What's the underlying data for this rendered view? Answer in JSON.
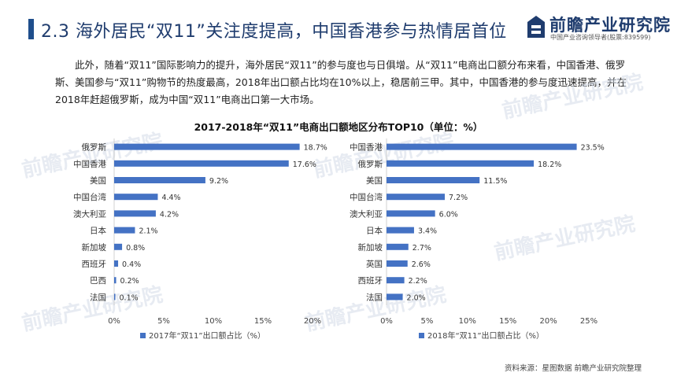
{
  "header": {
    "title": "2.3 海外居民“双11”关注度提高，中国香港参与热情居首位"
  },
  "logo": {
    "name": "前瞻产业研究院",
    "tagline": "中国产业咨询领导者(股票:839599)",
    "watermark_text": "前瞻产业研究院"
  },
  "body_text": "此外，随着“双11”国际影响力的提升，海外居民“双11”的参与度也与日俱增。从“双11”电商出口额分布来看，中国香港、俄罗斯、美国参与“双11”购物节的热度最高，2018年出口额占比均在10%以上，稳居前三甲。其中，中国香港的参与度迅速提高，并在2018年赶超俄罗斯，成为中国“双11”电商出口第一大市场。",
  "chart_title": "2017-2018年“双11”电商出口额地区分布TOP10（单位：%）",
  "source": "资料来源：星图数据 前瞻产业研究院整理",
  "colors": {
    "bar": "#4472c4",
    "title": "#1f3c6e",
    "accent": "#1f4e8c"
  },
  "chart_data": [
    {
      "type": "bar",
      "orientation": "horizontal",
      "categories": [
        "俄罗斯",
        "中国香港",
        "美国",
        "中国台湾",
        "澳大利亚",
        "日本",
        "新加坡",
        "西班牙",
        "巴西",
        "法国"
      ],
      "series": [
        {
          "name": "2017年“双11”出口额占比（%）",
          "values": [
            18.7,
            17.6,
            9.2,
            4.4,
            4.2,
            2.1,
            0.8,
            0.4,
            0.2,
            0.1
          ]
        }
      ],
      "x_ticks": [
        "0%",
        "5%",
        "10%",
        "15%",
        "20%"
      ],
      "xlim": [
        0,
        20
      ],
      "value_suffix": "%",
      "legend_position": "bottom-left"
    },
    {
      "type": "bar",
      "orientation": "horizontal",
      "categories": [
        "中国香港",
        "俄罗斯",
        "美国",
        "中国台湾",
        "澳大利亚",
        "日本",
        "新加坡",
        "英国",
        "西班牙",
        "法国"
      ],
      "series": [
        {
          "name": "2018年“双11”出口额占比（%）",
          "values": [
            23.5,
            18.2,
            11.5,
            7.2,
            6.0,
            3.4,
            2.7,
            2.6,
            2.2,
            2.0
          ]
        }
      ],
      "x_ticks": [
        "0%",
        "5%",
        "10%",
        "15%",
        "20%",
        "25%"
      ],
      "xlim": [
        0,
        25
      ],
      "value_suffix": "%",
      "legend_position": "bottom-left"
    }
  ]
}
